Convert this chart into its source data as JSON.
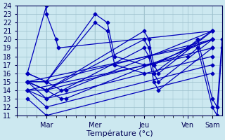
{
  "xlabel": "Température (°c)",
  "xlim": [
    0,
    1
  ],
  "ylim": [
    11,
    24
  ],
  "yticks": [
    11,
    12,
    13,
    14,
    15,
    16,
    17,
    18,
    19,
    20,
    21,
    22,
    23,
    24
  ],
  "xtick_positions": [
    0.143,
    0.381,
    0.619,
    0.833,
    0.952
  ],
  "xtick_labels": [
    "Mar",
    "Mer",
    "Jeu",
    "Ven",
    "Sam"
  ],
  "bg_color": "#cce8f0",
  "grid_color": "#9bbfcc",
  "line_color": "#0000bb",
  "markersize": 2.5,
  "linewidth": 0.9,
  "series": [
    {
      "x": [
        0.05,
        0.143,
        0.952
      ],
      "y": [
        16,
        15,
        20
      ]
    },
    {
      "x": [
        0.05,
        0.143,
        0.952
      ],
      "y": [
        15,
        14,
        19
      ]
    },
    {
      "x": [
        0.05,
        0.143,
        0.952
      ],
      "y": [
        15,
        13,
        18
      ]
    },
    {
      "x": [
        0.05,
        0.143,
        0.952
      ],
      "y": [
        14,
        12,
        17
      ]
    },
    {
      "x": [
        0.05,
        0.143,
        0.952
      ],
      "y": [
        13,
        11,
        16
      ]
    },
    {
      "x": [
        0.05,
        0.143,
        0.214,
        0.238,
        0.952
      ],
      "y": [
        16,
        15,
        14,
        14,
        21
      ]
    },
    {
      "x": [
        0.05,
        0.143,
        0.214,
        0.238,
        0.952
      ],
      "y": [
        15,
        14,
        13,
        13,
        20
      ]
    },
    {
      "x": [
        0.05,
        0.143,
        0.143,
        0.19,
        0.2,
        0.952
      ],
      "y": [
        16,
        24,
        23,
        20,
        19,
        21
      ]
    },
    {
      "x": [
        0.05,
        0.143,
        0.381,
        0.44,
        0.476,
        0.619,
        0.667,
        0.833,
        0.952
      ],
      "y": [
        15,
        15,
        23,
        22,
        18,
        17,
        17,
        19,
        21
      ]
    },
    {
      "x": [
        0.05,
        0.143,
        0.381,
        0.44,
        0.476,
        0.619,
        0.667,
        0.833,
        0.952
      ],
      "y": [
        15,
        15,
        22,
        21,
        17,
        16,
        16,
        19,
        20
      ]
    },
    {
      "x": [
        0.05,
        0.143,
        0.619,
        0.643,
        0.667,
        0.69,
        0.952
      ],
      "y": [
        15,
        14,
        21,
        20,
        17,
        16,
        21
      ]
    },
    {
      "x": [
        0.05,
        0.143,
        0.619,
        0.643,
        0.667,
        0.69,
        0.952
      ],
      "y": [
        14,
        14,
        20,
        19,
        16,
        15,
        20
      ]
    },
    {
      "x": [
        0.05,
        0.143,
        0.619,
        0.643,
        0.667,
        0.69,
        0.952
      ],
      "y": [
        14,
        13,
        19,
        18,
        15,
        14,
        19
      ]
    },
    {
      "x": [
        0.05,
        0.833,
        0.881,
        0.952,
        0.976,
        1.0
      ],
      "y": [
        15,
        19,
        20,
        13,
        12,
        20
      ]
    },
    {
      "x": [
        0.05,
        0.833,
        0.881,
        0.952,
        0.976,
        1.0
      ],
      "y": [
        14,
        18,
        19,
        12,
        11,
        19
      ]
    }
  ]
}
